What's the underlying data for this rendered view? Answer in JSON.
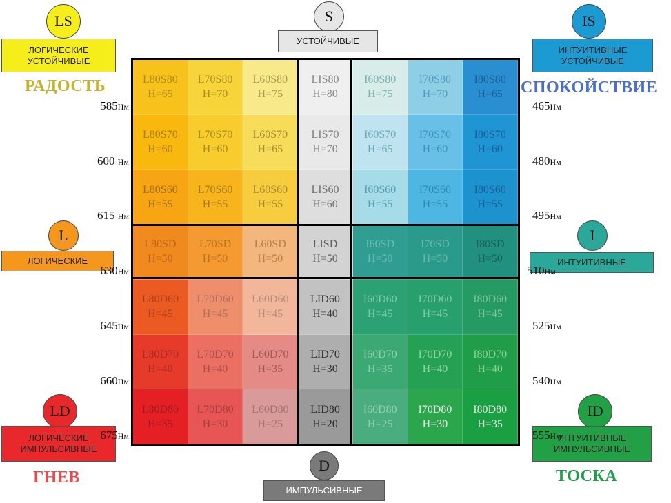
{
  "poles": {
    "ls": {
      "badge": "LS",
      "label": "ЛОГИЧЕСКИЕ\nУСТОЙЧИВЫЕ",
      "emotion": "РАДОСТЬ",
      "color": "#f6ee1a",
      "emotion_color": "#c7b32a"
    },
    "s": {
      "badge": "S",
      "label": "УСТОЙЧИВЫЕ",
      "color": "#e6e6e6"
    },
    "is": {
      "badge": "IS",
      "label": "ИНТУИТИВНЫЕ\nУСТОЙЧИВЫЕ",
      "emotion": "СПОКОЙСТВИЕ",
      "color": "#1b9bd2",
      "emotion_color": "#4a6fc7"
    },
    "l": {
      "badge": "L",
      "label": "ЛОГИЧЕСКИЕ",
      "color": "#f5961d"
    },
    "i": {
      "badge": "I",
      "label": "ИНТУИТИВНЫЕ",
      "color": "#2aa89a"
    },
    "ld": {
      "badge": "LD",
      "label": "ЛОГИЧЕСКИЕ\nИМПУЛЬСИВНЫЕ",
      "emotion": "ГНЕВ",
      "color": "#e8282a",
      "emotion_color": "#e84b4b"
    },
    "d": {
      "badge": "D",
      "label": "ИМПУЛЬСИВНЫЕ",
      "color": "#7a7a7a"
    },
    "id": {
      "badge": "ID",
      "label": "ИНТУИТИВНЫЕ\nИМПУЛЬСИВНЫЕ",
      "emotion": "ТОСКА",
      "color": "#22a045",
      "emotion_color": "#1fa048"
    }
  },
  "wavelengths_left": [
    {
      "value": "585",
      "unit": "Нм"
    },
    {
      "value": "600 ",
      "unit": "Нм"
    },
    {
      "value": "615 ",
      "unit": "Нм"
    },
    {
      "value": "630",
      "unit": "Нм"
    },
    {
      "value": "645",
      "unit": "Нм"
    },
    {
      "value": "660",
      "unit": "Нм"
    },
    {
      "value": "675",
      "unit": "Нм"
    }
  ],
  "wavelengths_right": [
    {
      "value": "465",
      "unit": "Нм"
    },
    {
      "value": "480",
      "unit": "Нм"
    },
    {
      "value": "495",
      "unit": "Нм"
    },
    {
      "value": "510",
      "unit": "Нм"
    },
    {
      "value": "525",
      "unit": "Нм"
    },
    {
      "value": "540",
      "unit": "Нм"
    },
    {
      "value": "555",
      "unit": "Нм"
    }
  ],
  "grid": {
    "rows": [
      [
        [
          "L80S80",
          "H=65"
        ],
        [
          "L70S80",
          "H=70"
        ],
        [
          "L60S80",
          "H=75"
        ],
        [
          "LIS80",
          "H=80"
        ],
        [
          "I60S80",
          "H=75"
        ],
        [
          "I70S80",
          "H=70"
        ],
        [
          "I80S80",
          "H=65"
        ]
      ],
      [
        [
          "L80S70",
          "H=60"
        ],
        [
          "L70S70",
          "H=60"
        ],
        [
          "L60S70",
          "H=65"
        ],
        [
          "LIS70",
          "H=70"
        ],
        [
          "I60S70",
          "H=65"
        ],
        [
          "I70S70",
          "H=60"
        ],
        [
          "I80S70",
          "H=60"
        ]
      ],
      [
        [
          "L80S60",
          "H=55"
        ],
        [
          "L70S60",
          "H=55"
        ],
        [
          "L60S60",
          "H=55"
        ],
        [
          "LIS60",
          "H=60"
        ],
        [
          "I60S60",
          "H=55"
        ],
        [
          "I70S60",
          "H=55"
        ],
        [
          "I80S60",
          "H=55"
        ]
      ],
      [
        [
          "L80SD",
          "H=50"
        ],
        [
          "L70SD",
          "H=50"
        ],
        [
          "L60SD",
          "H=50"
        ],
        [
          "LISD",
          "H=50"
        ],
        [
          "I60SD",
          "H=50"
        ],
        [
          "I70SD",
          "H=50"
        ],
        [
          "I80SD",
          "H=50"
        ]
      ],
      [
        [
          "L80D60",
          "H=45"
        ],
        [
          "L70D60",
          "H=45"
        ],
        [
          "L60D60",
          "H=45"
        ],
        [
          "LID60",
          "H=40"
        ],
        [
          "I60D60",
          "H=45"
        ],
        [
          "I70D60",
          "H=45"
        ],
        [
          "I80D60",
          "H=45"
        ]
      ],
      [
        [
          "L80D70",
          "H=40"
        ],
        [
          "L70D70",
          "H=40"
        ],
        [
          "L60D70",
          "H=35"
        ],
        [
          "LID70",
          "H=30"
        ],
        [
          "I60D70",
          "H=35"
        ],
        [
          "I70D70",
          "H=40"
        ],
        [
          "I80D70",
          "H=40"
        ]
      ],
      [
        [
          "L80D80",
          "H=35"
        ],
        [
          "L70D80",
          "H=30"
        ],
        [
          "L60D80",
          "H=25"
        ],
        [
          "LID80",
          "H=20"
        ],
        [
          "I60D80",
          "H=25"
        ],
        [
          "I70D80",
          "H=30"
        ],
        [
          "I80D80",
          "H=35"
        ]
      ]
    ],
    "colors": [
      [
        "#f7c21c",
        "#f7d43a",
        "#f8e98a",
        "#efefef",
        "#d8ecea",
        "#8fcfe6",
        "#2a8fd0"
      ],
      [
        "#f8b80e",
        "#f9cc2e",
        "#f7dc5a",
        "#e9e9e9",
        "#bfe3ef",
        "#69c0e6",
        "#1f95d4"
      ],
      [
        "#f7a512",
        "#f8b41c",
        "#f7cc3e",
        "#dedede",
        "#a6dbe8",
        "#4eb6e2",
        "#1c92cf"
      ],
      [
        "#f18a1e",
        "#f49a30",
        "#f3b77e",
        "#d3d3d3",
        "#2f9d92",
        "#2a9a8c",
        "#22907f"
      ],
      [
        "#ea5a22",
        "#ee8e6a",
        "#f2b79a",
        "#c2c2c2",
        "#2ba174",
        "#27a06d",
        "#259a62"
      ],
      [
        "#e63a2a",
        "#ec6f64",
        "#e48b86",
        "#aeaeae",
        "#3ca873",
        "#25a154",
        "#1f9d48"
      ],
      [
        "#e42025",
        "#e75555",
        "#d99a9a",
        "#9a9a9a",
        "#49ad80",
        "#2ba64c",
        "#1aa042"
      ]
    ],
    "text_colors": [
      [
        "#b08a1a",
        "#a98f1e",
        "#a99a4a",
        "#888888",
        "#7ab1b0",
        "#4f9ec0",
        "#1d5f9a"
      ],
      [
        "#a67f14",
        "#a68b1e",
        "#a38c30",
        "#7d7d7d",
        "#6aa9b7",
        "#3f93bb",
        "#195f99"
      ],
      [
        "#a06d10",
        "#a57a14",
        "#a58c2a",
        "#707070",
        "#57a0b3",
        "#2f89b3",
        "#176096"
      ],
      [
        "#b9661a",
        "#b8742a",
        "#b5804a",
        "#5e5e5e",
        "#6fbcb2",
        "#6cb6ac",
        "#1b5f57"
      ],
      [
        "#b23f1a",
        "#b07060",
        "#b58e7a",
        "#3c3c3c",
        "#7ecaa8",
        "#7ec7a5",
        "#7dc59c"
      ],
      [
        "#ac2a22",
        "#a8504a",
        "#9e5a56",
        "#2e2e2e",
        "#8ed0ae",
        "#94d2a2",
        "#8dcf97"
      ],
      [
        "#a01a1e",
        "#a54040",
        "#a37272",
        "#2a2a2a",
        "#92d1b2",
        "#e7e7e7",
        "#e2e2e2"
      ]
    ]
  }
}
